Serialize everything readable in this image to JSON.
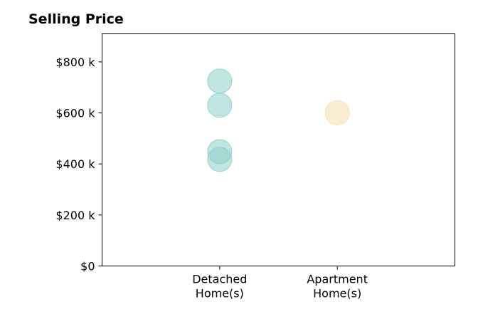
{
  "chart_data": {
    "type": "scatter",
    "title": "Selling Price",
    "xlabel": "",
    "ylabel": "",
    "categories": [
      [
        "Detached",
        "Home(s)"
      ],
      [
        "Apartment",
        "Home(s)"
      ]
    ],
    "xlim": [
      0,
      3
    ],
    "ylim": [
      0,
      910
    ],
    "yticks": [
      0,
      200,
      400,
      600,
      800
    ],
    "ytick_labels": [
      "$0",
      "$200 k",
      "$400 k",
      "$600 k",
      "$800 k"
    ],
    "grid": false,
    "series": [
      {
        "category": 0,
        "color": "#8ecfc9",
        "values": [
          725,
          630,
          448,
          418
        ]
      },
      {
        "category": 1,
        "color": "#f5dfae",
        "values": [
          600
        ]
      }
    ]
  }
}
